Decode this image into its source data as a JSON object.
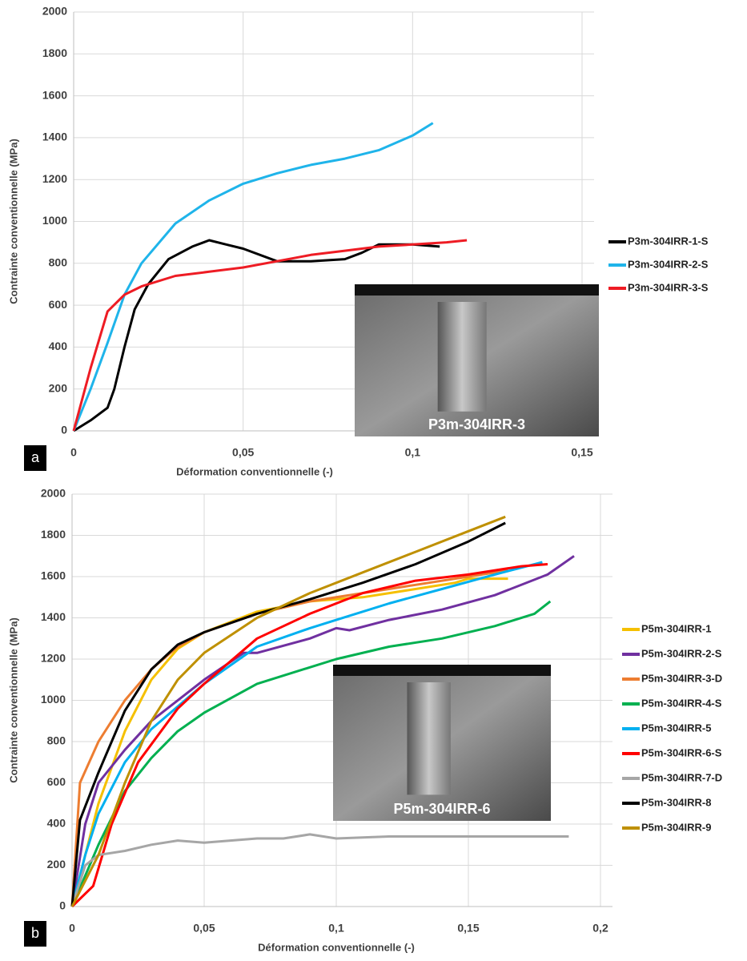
{
  "chart_data": [
    {
      "type": "line",
      "panel_label": "a",
      "inset_label": "P3m-304IRR-3",
      "x_label": "Déformation conventionnelle (-)",
      "y_label": "Contrainte conventionnelle (MPa)",
      "xlim": [
        0,
        0.15
      ],
      "ylim": [
        0,
        2000
      ],
      "grid": true,
      "legend": "right",
      "xticks": [
        0,
        {
          "value": 0.05,
          "label": "0,05"
        },
        {
          "value": 0.1,
          "label": "0,1"
        },
        {
          "value": 0.15,
          "label": "0,15"
        }
      ],
      "yticks": [
        0,
        200,
        400,
        600,
        800,
        1000,
        1200,
        1400,
        1600,
        1800,
        2000
      ],
      "series": [
        {
          "name": "P3m-304IRR-1-S",
          "color": "#000000",
          "x": [
            0,
            0.005,
            0.01,
            0.012,
            0.015,
            0.018,
            0.022,
            0.028,
            0.035,
            0.04,
            0.045,
            0.05,
            0.06,
            0.07,
            0.08,
            0.085,
            0.09,
            0.1,
            0.108
          ],
          "values": [
            0,
            50,
            110,
            200,
            400,
            580,
            700,
            820,
            880,
            910,
            890,
            870,
            810,
            810,
            820,
            850,
            890,
            890,
            880
          ]
        },
        {
          "name": "P3m-304IRR-2-S",
          "color": "#1fb4ea",
          "x": [
            0,
            0.005,
            0.01,
            0.015,
            0.02,
            0.03,
            0.04,
            0.05,
            0.06,
            0.07,
            0.08,
            0.09,
            0.1,
            0.106
          ],
          "values": [
            0,
            200,
            420,
            650,
            800,
            990,
            1100,
            1180,
            1230,
            1270,
            1300,
            1340,
            1410,
            1470
          ]
        },
        {
          "name": "P3m-304IRR-3-S",
          "color": "#ee1c24",
          "x": [
            0,
            0.005,
            0.01,
            0.015,
            0.02,
            0.03,
            0.04,
            0.05,
            0.06,
            0.07,
            0.08,
            0.09,
            0.1,
            0.11,
            0.116
          ],
          "values": [
            0,
            300,
            570,
            650,
            690,
            740,
            760,
            780,
            810,
            840,
            860,
            880,
            890,
            900,
            910
          ]
        }
      ]
    },
    {
      "type": "line",
      "panel_label": "b",
      "inset_label": "P5m-304IRR-6",
      "x_label": "Déformation conventionnelle (-)",
      "y_label": "Contrainte conventionnelle (MPa)",
      "xlim": [
        0,
        0.2
      ],
      "ylim": [
        0,
        2000
      ],
      "grid": true,
      "legend": "right",
      "xticks": [
        0,
        {
          "value": 0.05,
          "label": "0,05"
        },
        {
          "value": 0.1,
          "label": "0,1"
        },
        {
          "value": 0.15,
          "label": "0,15"
        },
        {
          "value": 0.2,
          "label": "0,2"
        }
      ],
      "yticks": [
        0,
        200,
        400,
        600,
        800,
        1000,
        1200,
        1400,
        1600,
        1800,
        2000
      ],
      "series": [
        {
          "name": "P5m-304IRR-1",
          "color": "#f5c000",
          "x": [
            0,
            0.005,
            0.01,
            0.02,
            0.03,
            0.04,
            0.05,
            0.07,
            0.09,
            0.11,
            0.13,
            0.145,
            0.15,
            0.165
          ],
          "values": [
            0,
            250,
            500,
            850,
            1100,
            1250,
            1330,
            1430,
            1480,
            1500,
            1540,
            1570,
            1590,
            1590
          ]
        },
        {
          "name": "P5m-304IRR-2-S",
          "color": "#7030a0",
          "x": [
            0,
            0.005,
            0.01,
            0.02,
            0.03,
            0.05,
            0.065,
            0.07,
            0.09,
            0.1,
            0.105,
            0.12,
            0.14,
            0.16,
            0.18,
            0.19
          ],
          "values": [
            0,
            400,
            600,
            760,
            900,
            1100,
            1230,
            1230,
            1300,
            1350,
            1340,
            1390,
            1440,
            1510,
            1610,
            1700
          ]
        },
        {
          "name": "P5m-304IRR-3-D",
          "color": "#ed7d31",
          "x": [
            0,
            0.003,
            0.01,
            0.02,
            0.03,
            0.04,
            0.05,
            0.07,
            0.09,
            0.11,
            0.13,
            0.15,
            0.165
          ],
          "values": [
            0,
            600,
            800,
            1000,
            1150,
            1260,
            1330,
            1420,
            1480,
            1520,
            1560,
            1600,
            1630
          ]
        },
        {
          "name": "P5m-304IRR-4-S",
          "color": "#00b050",
          "x": [
            0,
            0.01,
            0.02,
            0.03,
            0.04,
            0.05,
            0.07,
            0.09,
            0.1,
            0.12,
            0.14,
            0.16,
            0.175,
            0.181
          ],
          "values": [
            0,
            300,
            560,
            720,
            850,
            940,
            1080,
            1160,
            1200,
            1260,
            1300,
            1360,
            1420,
            1480
          ]
        },
        {
          "name": "P5m-304IRR-5",
          "color": "#00b0f0",
          "x": [
            0,
            0.005,
            0.01,
            0.02,
            0.03,
            0.05,
            0.07,
            0.09,
            0.1,
            0.12,
            0.14,
            0.16,
            0.178
          ],
          "values": [
            0,
            250,
            450,
            700,
            860,
            1080,
            1260,
            1350,
            1390,
            1470,
            1540,
            1610,
            1670
          ]
        },
        {
          "name": "P5m-304IRR-6-S",
          "color": "#ff0000",
          "x": [
            0,
            0.008,
            0.015,
            0.025,
            0.04,
            0.05,
            0.07,
            0.09,
            0.11,
            0.13,
            0.15,
            0.17,
            0.18
          ],
          "values": [
            0,
            100,
            400,
            700,
            960,
            1080,
            1300,
            1420,
            1520,
            1580,
            1610,
            1650,
            1660
          ]
        },
        {
          "name": "P5m-304IRR-7-D",
          "color": "#a6a6a6",
          "x": [
            0,
            0.005,
            0.01,
            0.02,
            0.03,
            0.04,
            0.05,
            0.06,
            0.07,
            0.08,
            0.09,
            0.1,
            0.12,
            0.14,
            0.16,
            0.18,
            0.188
          ],
          "values": [
            0,
            200,
            250,
            270,
            300,
            320,
            310,
            320,
            330,
            330,
            350,
            330,
            340,
            340,
            340,
            340,
            340
          ]
        },
        {
          "name": "P5m-304IRR-8",
          "color": "#000000",
          "x": [
            0,
            0.003,
            0.01,
            0.02,
            0.03,
            0.04,
            0.05,
            0.07,
            0.09,
            0.11,
            0.13,
            0.15,
            0.164
          ],
          "values": [
            0,
            420,
            650,
            950,
            1150,
            1270,
            1330,
            1420,
            1490,
            1570,
            1660,
            1770,
            1860
          ]
        },
        {
          "name": "P5m-304IRR-9",
          "color": "#bf9000",
          "x": [
            0,
            0.01,
            0.02,
            0.03,
            0.04,
            0.05,
            0.07,
            0.09,
            0.11,
            0.13,
            0.15,
            0.164
          ],
          "values": [
            0,
            250,
            600,
            900,
            1100,
            1230,
            1400,
            1520,
            1620,
            1720,
            1820,
            1890
          ]
        }
      ]
    }
  ]
}
